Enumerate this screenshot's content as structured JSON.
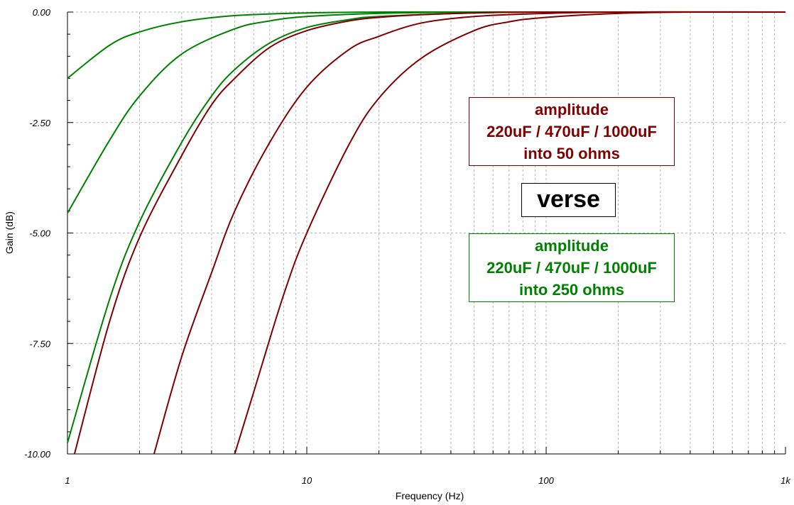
{
  "chart_data": {
    "type": "line",
    "xlabel": "Frequency (Hz)",
    "ylabel": "Gain (dB)",
    "x_scale": "log",
    "xlim": [
      1,
      1000
    ],
    "ylim": [
      -10,
      0
    ],
    "x_ticks": [
      1,
      10,
      100,
      1000
    ],
    "x_tick_labels": [
      "1",
      "10",
      "100",
      "1k"
    ],
    "y_ticks": [
      0,
      -2.5,
      -5,
      -7.5,
      -10
    ],
    "y_tick_labels": [
      "0.00",
      "-2.50",
      "-5.00",
      "-7.50",
      "-10.00"
    ],
    "grid": true,
    "colors": {
      "red": "#800000",
      "green": "#008000"
    },
    "series": [
      {
        "color": "#008000",
        "x": [
          1,
          1.5,
          2,
          3,
          5,
          10,
          20,
          50,
          100,
          1000
        ],
        "y": [
          -1.5,
          -0.75,
          -0.45,
          -0.22,
          -0.08,
          -0.02,
          0,
          0,
          0,
          0
        ]
      },
      {
        "color": "#008000",
        "x": [
          1,
          1.5,
          2,
          3,
          5,
          7,
          10,
          20,
          50,
          100,
          1000
        ],
        "y": [
          -4.55,
          -2.9,
          -1.9,
          -0.95,
          -0.38,
          -0.2,
          -0.1,
          -0.03,
          0,
          0,
          0
        ]
      },
      {
        "color": "#008000",
        "x": [
          1,
          1.5,
          2,
          3,
          4,
          5,
          7,
          10,
          15,
          20,
          50,
          100,
          1000
        ],
        "y": [
          -9.75,
          -6.5,
          -4.75,
          -2.95,
          -1.9,
          -1.3,
          -0.7,
          -0.35,
          -0.17,
          -0.1,
          -0.02,
          0,
          0
        ]
      },
      {
        "color": "#800000",
        "x": [
          1.07,
          1.5,
          2,
          3,
          4,
          5,
          7,
          10,
          15,
          20,
          30,
          50,
          100,
          1000
        ],
        "y": [
          -10,
          -7.0,
          -5.1,
          -3.25,
          -2.1,
          -1.5,
          -0.8,
          -0.42,
          -0.2,
          -0.12,
          -0.06,
          -0.02,
          0,
          0
        ]
      },
      {
        "color": "#800000",
        "x": [
          2.3,
          3,
          4,
          5,
          7,
          10,
          15,
          20,
          30,
          50,
          100,
          200,
          1000
        ],
        "y": [
          -10,
          -7.8,
          -5.9,
          -4.5,
          -2.95,
          -1.7,
          -0.85,
          -0.55,
          -0.25,
          -0.1,
          -0.03,
          0,
          0
        ]
      },
      {
        "color": "#800000",
        "x": [
          5,
          6,
          8,
          10,
          15,
          20,
          30,
          50,
          70,
          100,
          200,
          400,
          1000
        ],
        "y": [
          -10,
          -8.6,
          -6.4,
          -5.0,
          -3.0,
          -1.95,
          -1.05,
          -0.42,
          -0.22,
          -0.12,
          -0.03,
          0,
          0
        ]
      }
    ]
  },
  "legend_red": {
    "line1": "amplitude",
    "line2": "220uF / 470uF / 1000uF",
    "line3": "into 50 ohms"
  },
  "legend_green": {
    "line1": "amplitude",
    "line2": "220uF / 470uF / 1000uF",
    "line3": "into 250 ohms"
  },
  "verse_label": "verse"
}
